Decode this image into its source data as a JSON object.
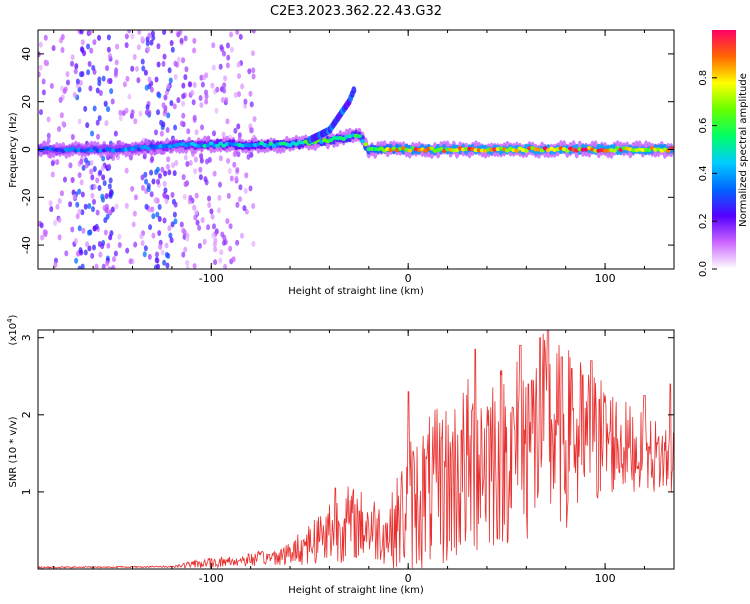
{
  "chart_data": [
    {
      "type": "heatmap",
      "title": "C2E3.2023.362.22.43.G32",
      "xlabel": "Height of straight line (km)",
      "ylabel": "Frequency (Hz)",
      "xlim": [
        -188,
        135
      ],
      "ylim": [
        -50,
        50
      ],
      "x_ticks": [
        -100,
        0,
        100
      ],
      "x_tick_labels": [
        "-100",
        "0",
        "100"
      ],
      "y_ticks": [
        -40,
        -20,
        0,
        20,
        40
      ],
      "y_tick_labels": [
        "-40",
        "-20",
        "0",
        "20",
        "40"
      ],
      "colorbar": {
        "label": "Normalized spectral amplitude",
        "range": [
          0,
          1
        ],
        "ticks": [
          0.0,
          0.2,
          0.4,
          0.6,
          0.8
        ],
        "tick_labels": [
          "0.0",
          "0.2",
          "0.4",
          "0.6",
          "0.8"
        ],
        "colors": [
          "#ffffff",
          "#cc66ff",
          "#5500ff",
          "#0066ff",
          "#00ccff",
          "#00ff66",
          "#66ff00",
          "#ffff00",
          "#ff6600",
          "#ff0066"
        ]
      },
      "ridge": {
        "x": [
          -188,
          -150,
          -110,
          -80,
          -60,
          -40,
          -25,
          -20,
          0,
          50,
          100,
          135
        ],
        "freq_hz": [
          0,
          0,
          2,
          2,
          2,
          4,
          6,
          0,
          0,
          0,
          0,
          0
        ],
        "amplitude": [
          0.35,
          0.35,
          0.45,
          0.5,
          0.55,
          0.6,
          0.55,
          0.7,
          0.85,
          0.9,
          0.9,
          0.85
        ]
      },
      "branch": {
        "x": [
          -50,
          -40,
          -35,
          -30,
          -27
        ],
        "freq_hz": [
          4,
          8,
          14,
          20,
          26
        ]
      },
      "grid": false,
      "legend": "colorbar-right"
    },
    {
      "type": "line",
      "title": "",
      "xlabel": "Height of straight line (km)",
      "ylabel": "SNR (10 * v/v)",
      "y_multiplier_label": "(x10",
      "y_multiplier_exp": "4",
      "y_multiplier_close": ")",
      "xlim": [
        -188,
        135
      ],
      "ylim": [
        0,
        3.1
      ],
      "x_ticks": [
        -100,
        0,
        100
      ],
      "x_tick_labels": [
        "-100",
        "0",
        "100"
      ],
      "y_ticks": [
        1,
        2,
        3
      ],
      "y_tick_labels": [
        "1",
        "2",
        "3"
      ],
      "color": "#e8302f",
      "grid": false,
      "envelope": {
        "x": [
          -188,
          -120,
          -110,
          -90,
          -70,
          -60,
          -50,
          -40,
          -30,
          -20,
          -10,
          0,
          10,
          20,
          30,
          40,
          50,
          60,
          70,
          80,
          90,
          100,
          110,
          120,
          135
        ],
        "mean": [
          0.02,
          0.03,
          0.06,
          0.1,
          0.15,
          0.2,
          0.35,
          0.5,
          0.6,
          0.55,
          0.45,
          0.8,
          1.0,
          1.1,
          1.3,
          1.5,
          1.5,
          1.6,
          1.8,
          1.7,
          1.6,
          1.7,
          1.6,
          1.5,
          1.4
        ],
        "amplitude": [
          0.01,
          0.01,
          0.05,
          0.08,
          0.1,
          0.15,
          0.3,
          0.45,
          0.5,
          0.45,
          0.4,
          0.9,
          1.0,
          1.1,
          1.2,
          1.3,
          1.2,
          1.3,
          1.3,
          1.2,
          1.1,
          0.8,
          0.6,
          0.5,
          0.5
        ]
      },
      "peaks": {
        "x": [
          -37,
          0,
          17,
          27,
          34,
          53,
          57,
          61,
          67,
          71,
          78,
          83,
          93,
          97,
          120,
          133
        ],
        "y": [
          1.05,
          2.3,
          1.7,
          1.8,
          2.85,
          2.1,
          2.9,
          2.4,
          3.0,
          3.1,
          2.75,
          2.6,
          2.7,
          2.2,
          2.25,
          2.4
        ]
      }
    }
  ]
}
